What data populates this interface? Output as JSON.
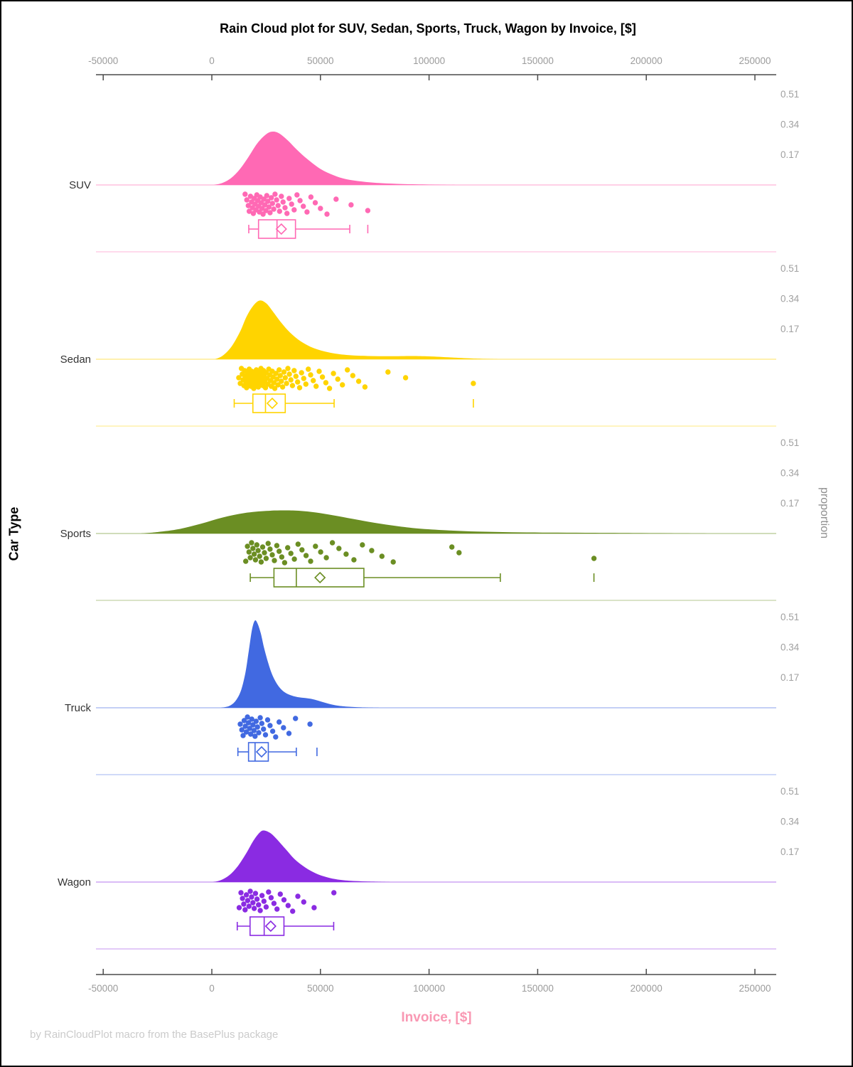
{
  "title": "Rain Cloud plot for SUV, Sedan, Sports, Truck, Wagon by Invoice, [$]",
  "x_axis_label": "Invoice, [$]",
  "y_axis_label": "Car Type",
  "right_axis_label": "proportion",
  "footer": "by RainCloudPlot macro from the BasePlus package",
  "chart_data": {
    "type": "raincloud (half-violin density + jittered scatter + boxplot per category)",
    "xlabel": "Invoice, [$]",
    "ylabel": "Car Type",
    "ylabel_right": "proportion",
    "x_axis_range": [
      -50000,
      250000
    ],
    "x_tick_values": [
      -50000,
      0,
      50000,
      100000,
      150000,
      200000,
      250000
    ],
    "x_tick_labels": [
      "-50000",
      "0",
      "50000",
      "100000",
      "150000",
      "200000",
      "250000"
    ],
    "proportion_tick_values": [
      0.51,
      0.34,
      0.17
    ],
    "proportion_tick_labels": [
      "0.51",
      "0.34",
      "0.17"
    ],
    "grid": false,
    "legend": "none",
    "groups": [
      {
        "name": "SUV",
        "color": "#FF69B4",
        "density_peak": {
          "invoice": 28000,
          "proportion": 0.3
        },
        "density": [
          [
            1000,
            0
          ],
          [
            5000,
            0.012
          ],
          [
            9000,
            0.04
          ],
          [
            13000,
            0.09
          ],
          [
            17000,
            0.16
          ],
          [
            21000,
            0.235
          ],
          [
            25000,
            0.285
          ],
          [
            28000,
            0.3
          ],
          [
            31000,
            0.29
          ],
          [
            35000,
            0.25
          ],
          [
            39000,
            0.2
          ],
          [
            44000,
            0.145
          ],
          [
            50000,
            0.09
          ],
          [
            56000,
            0.055
          ],
          [
            62000,
            0.032
          ],
          [
            70000,
            0.018
          ],
          [
            78000,
            0.01
          ],
          [
            88000,
            0.005
          ],
          [
            100000,
            0.002
          ],
          [
            112000,
            0
          ]
        ],
        "box": {
          "whisker_low": 17000,
          "q1": 21500,
          "median": 30000,
          "q3": 38500,
          "whisker_high": 63500,
          "mean": 32000,
          "outliers": [
            71800
          ]
        },
        "points": [
          15300,
          16100,
          16800,
          17200,
          17800,
          18300,
          18700,
          19100,
          19500,
          19900,
          20300,
          20700,
          21100,
          21500,
          21900,
          22300,
          22700,
          23100,
          23600,
          24000,
          24400,
          24900,
          25300,
          25800,
          26300,
          26800,
          27400,
          27900,
          28500,
          29100,
          29800,
          30500,
          31200,
          32000,
          32800,
          33700,
          34600,
          35600,
          36700,
          37900,
          39200,
          40600,
          42100,
          43800,
          45600,
          47600,
          50000,
          53000,
          57200,
          64100,
          71800
        ]
      },
      {
        "name": "Sedan",
        "color": "#FFD400",
        "density_peak": {
          "invoice": 22000,
          "proportion": 0.33
        },
        "density": [
          [
            1500,
            0
          ],
          [
            5000,
            0.02
          ],
          [
            9000,
            0.07
          ],
          [
            13000,
            0.155
          ],
          [
            16000,
            0.24
          ],
          [
            19000,
            0.3
          ],
          [
            22000,
            0.33
          ],
          [
            25000,
            0.315
          ],
          [
            28000,
            0.27
          ],
          [
            32000,
            0.205
          ],
          [
            36000,
            0.15
          ],
          [
            41000,
            0.1
          ],
          [
            47000,
            0.062
          ],
          [
            54000,
            0.038
          ],
          [
            62000,
            0.024
          ],
          [
            72000,
            0.018
          ],
          [
            82000,
            0.017
          ],
          [
            92000,
            0.018
          ],
          [
            100000,
            0.016
          ],
          [
            110000,
            0.01
          ],
          [
            120000,
            0.004
          ],
          [
            132000,
            0
          ]
        ],
        "box": {
          "whisker_low": 10300,
          "q1": 18900,
          "median": 24700,
          "q3": 33800,
          "whisker_high": 56300,
          "mean": 27800,
          "outliers": [
            120400
          ]
        },
        "points": [
          12400,
          13100,
          13600,
          14000,
          14400,
          14800,
          15100,
          15400,
          15700,
          16000,
          16300,
          16600,
          16900,
          17200,
          17500,
          17800,
          18100,
          18400,
          18700,
          19000,
          19300,
          19600,
          19900,
          20200,
          20500,
          20800,
          21100,
          21400,
          21700,
          22000,
          22300,
          22600,
          22900,
          23200,
          23500,
          23800,
          24100,
          24400,
          24700,
          25000,
          25400,
          25800,
          26200,
          26600,
          27000,
          27400,
          27800,
          28200,
          28600,
          29000,
          29500,
          30000,
          30500,
          31000,
          31500,
          32000,
          32600,
          33200,
          33800,
          34400,
          35000,
          35700,
          36400,
          37100,
          37900,
          38700,
          39500,
          40400,
          41300,
          42300,
          43300,
          44400,
          45500,
          46700,
          48000,
          49400,
          50900,
          52500,
          54200,
          56000,
          58000,
          60100,
          62400,
          64900,
          67600,
          70500,
          81100,
          89200,
          120400
        ]
      },
      {
        "name": "Sports",
        "color": "#6B8E23",
        "density_peak": {
          "invoice": 36000,
          "proportion": 0.13
        },
        "density": [
          [
            -33000,
            0
          ],
          [
            -25000,
            0.008
          ],
          [
            -15000,
            0.025
          ],
          [
            -5000,
            0.055
          ],
          [
            5000,
            0.09
          ],
          [
            15000,
            0.115
          ],
          [
            25000,
            0.127
          ],
          [
            33000,
            0.13
          ],
          [
            40000,
            0.128
          ],
          [
            48000,
            0.118
          ],
          [
            56000,
            0.102
          ],
          [
            65000,
            0.082
          ],
          [
            75000,
            0.06
          ],
          [
            85000,
            0.042
          ],
          [
            95000,
            0.028
          ],
          [
            108000,
            0.018
          ],
          [
            122000,
            0.011
          ],
          [
            138000,
            0.007
          ],
          [
            155000,
            0.005
          ],
          [
            172000,
            0.004
          ],
          [
            190000,
            0.003
          ],
          [
            210000,
            0.0015
          ],
          [
            232000,
            0
          ]
        ],
        "box": {
          "whisker_low": 17700,
          "q1": 28600,
          "median": 38900,
          "q3": 70000,
          "whisker_high": 132800,
          "mean": 49800,
          "outliers": [
            175900
          ]
        },
        "points": [
          15600,
          16400,
          17100,
          17700,
          18300,
          18900,
          19500,
          20100,
          20700,
          21300,
          22000,
          22700,
          23400,
          24200,
          25000,
          25900,
          26800,
          27800,
          28800,
          29900,
          31000,
          32200,
          33500,
          34900,
          36400,
          38000,
          39700,
          41500,
          43400,
          45500,
          47700,
          50100,
          52700,
          55500,
          58500,
          61800,
          65400,
          69300,
          73600,
          78300,
          83500,
          110500,
          113800,
          175900
        ]
      },
      {
        "name": "Truck",
        "color": "#4169E1",
        "density_peak": {
          "invoice": 19800,
          "proportion": 0.49
        },
        "density": [
          [
            4000,
            0
          ],
          [
            8000,
            0.01
          ],
          [
            11000,
            0.04
          ],
          [
            13500,
            0.1
          ],
          [
            15500,
            0.2
          ],
          [
            17000,
            0.32
          ],
          [
            18500,
            0.44
          ],
          [
            19800,
            0.49
          ],
          [
            21000,
            0.475
          ],
          [
            22500,
            0.42
          ],
          [
            24000,
            0.34
          ],
          [
            26000,
            0.25
          ],
          [
            28000,
            0.18
          ],
          [
            30500,
            0.125
          ],
          [
            33000,
            0.092
          ],
          [
            36000,
            0.072
          ],
          [
            39500,
            0.06
          ],
          [
            43000,
            0.055
          ],
          [
            46500,
            0.048
          ],
          [
            50000,
            0.036
          ],
          [
            54000,
            0.022
          ],
          [
            58000,
            0.012
          ],
          [
            63000,
            0.006
          ],
          [
            70000,
            0.002
          ],
          [
            78000,
            0
          ]
        ],
        "box": {
          "whisker_low": 12000,
          "q1": 16900,
          "median": 19900,
          "q3": 26000,
          "whisker_high": 38900,
          "mean": 22900,
          "outliers": [
            48400
          ]
        },
        "points": [
          13100,
          13800,
          14400,
          14900,
          15400,
          15900,
          16400,
          16900,
          17400,
          17900,
          18400,
          18900,
          19400,
          19900,
          20400,
          21000,
          21600,
          22300,
          23000,
          23800,
          24700,
          25700,
          26800,
          28000,
          29400,
          31000,
          33000,
          35500,
          38500,
          45200
        ]
      },
      {
        "name": "Wagon",
        "color": "#8A2BE2",
        "density_peak": {
          "invoice": 23500,
          "proportion": 0.29
        },
        "density": [
          [
            500,
            0
          ],
          [
            4000,
            0.01
          ],
          [
            8000,
            0.038
          ],
          [
            12000,
            0.09
          ],
          [
            16000,
            0.165
          ],
          [
            19000,
            0.23
          ],
          [
            22000,
            0.278
          ],
          [
            24000,
            0.29
          ],
          [
            27000,
            0.275
          ],
          [
            30000,
            0.24
          ],
          [
            34000,
            0.185
          ],
          [
            38000,
            0.13
          ],
          [
            43000,
            0.082
          ],
          [
            48000,
            0.048
          ],
          [
            53000,
            0.027
          ],
          [
            58000,
            0.014
          ],
          [
            64000,
            0.007
          ],
          [
            72000,
            0.003
          ],
          [
            82000,
            0
          ]
        ],
        "box": {
          "whisker_low": 11700,
          "q1": 17600,
          "median": 24100,
          "q3": 33200,
          "whisker_high": 56100,
          "mean": 27100,
          "outliers": []
        },
        "points": [
          12600,
          13400,
          14100,
          14700,
          15300,
          15900,
          16500,
          17100,
          17700,
          18300,
          18900,
          19500,
          20100,
          20800,
          21500,
          22300,
          23100,
          24000,
          25000,
          26100,
          27300,
          28600,
          30000,
          31500,
          33200,
          35100,
          37200,
          39600,
          42300,
          47100,
          56200
        ]
      }
    ]
  }
}
